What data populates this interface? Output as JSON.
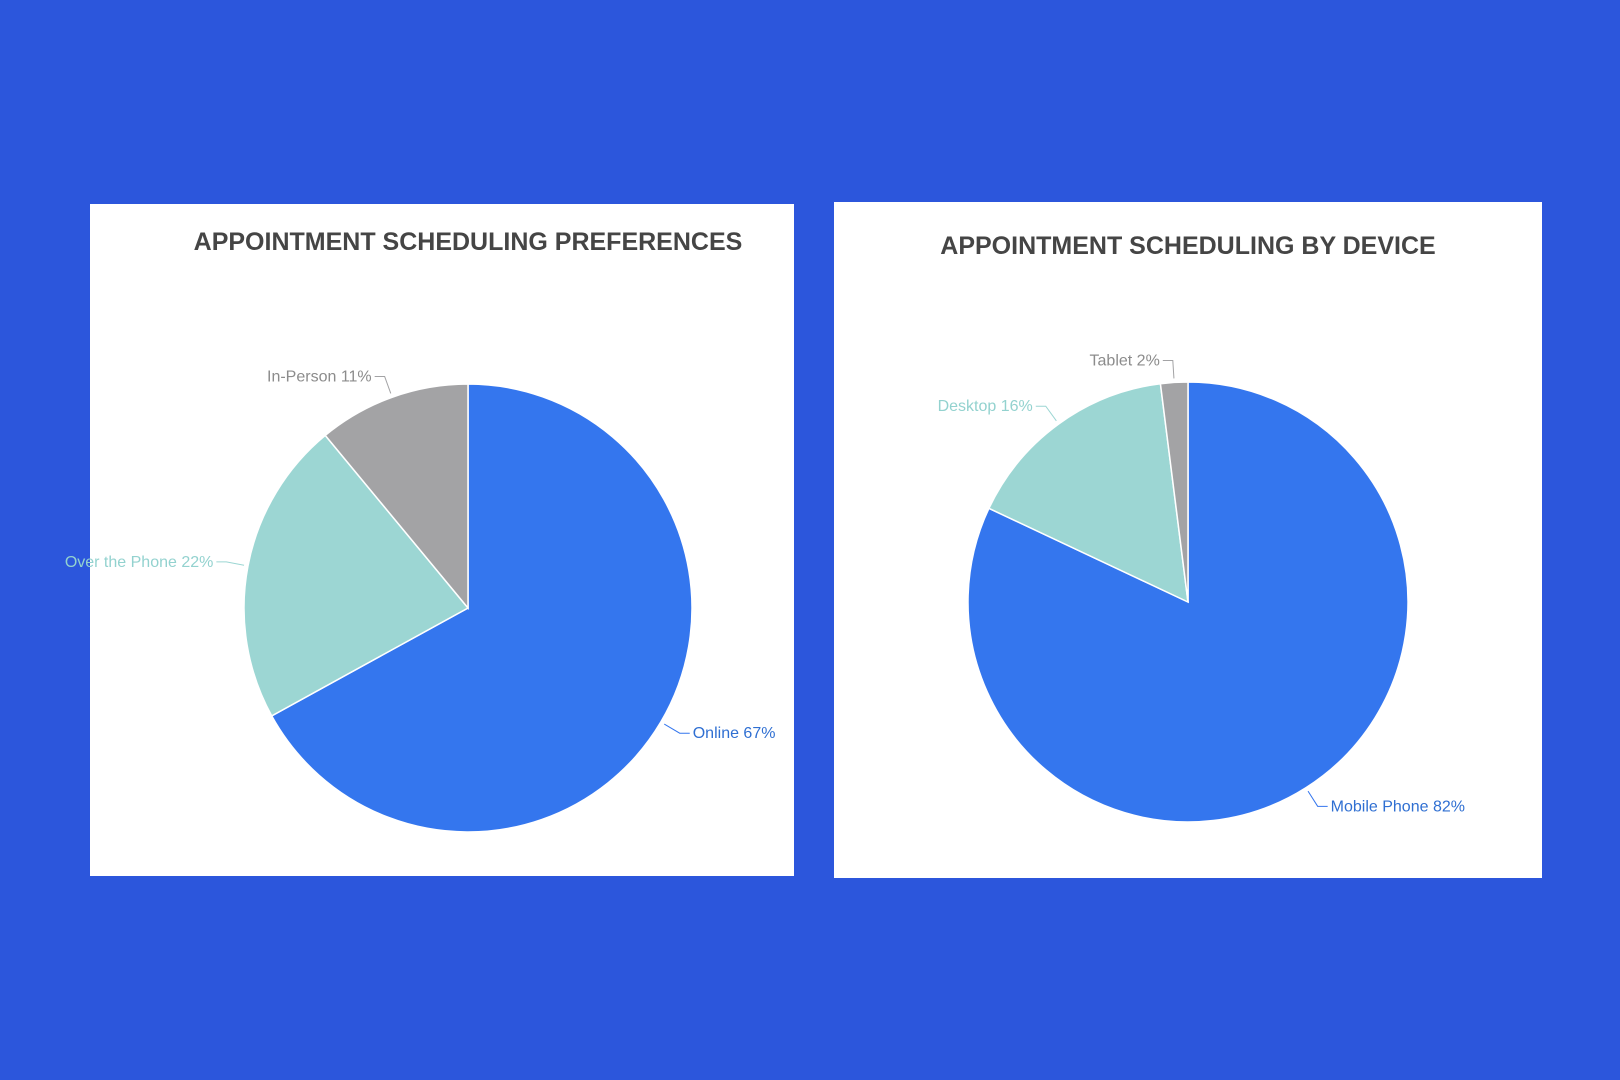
{
  "colors": {
    "background": "#2c56dc",
    "panel": "#ffffff",
    "title": "#454545",
    "slice_blue": "#3476ee",
    "slice_teal": "#9cd6d3",
    "slice_gray": "#a3a3a5",
    "label_blue": "#2f6fd2",
    "label_teal": "#93d2cf",
    "label_gray": "#8c8c8c"
  },
  "chart_data": [
    {
      "type": "pie",
      "title": "APPOINTMENT SCHEDULING PREFERENCES",
      "slices": [
        {
          "name": "Online",
          "value": 67,
          "label": "Online 67%",
          "color": "#3476ee",
          "label_color": "#2f6fd2"
        },
        {
          "name": "Over the Phone",
          "value": 22,
          "label": "Over the Phone 22%",
          "color": "#9cd6d3",
          "label_color": "#93d2cf"
        },
        {
          "name": "In-Person",
          "value": 11,
          "label": "In-Person 11%",
          "color": "#a3a3a5",
          "label_color": "#8c8c8c"
        }
      ]
    },
    {
      "type": "pie",
      "title": "APPOINTMENT SCHEDULING BY DEVICE",
      "slices": [
        {
          "name": "Mobile Phone",
          "value": 82,
          "label": "Mobile Phone 82%",
          "color": "#3476ee",
          "label_color": "#2f6fd2"
        },
        {
          "name": "Desktop",
          "value": 16,
          "label": "Desktop 16%",
          "color": "#9cd6d3",
          "label_color": "#93d2cf"
        },
        {
          "name": "Tablet",
          "value": 2,
          "label": "Tablet 2%",
          "color": "#a3a3a5",
          "label_color": "#8c8c8c"
        }
      ]
    }
  ]
}
